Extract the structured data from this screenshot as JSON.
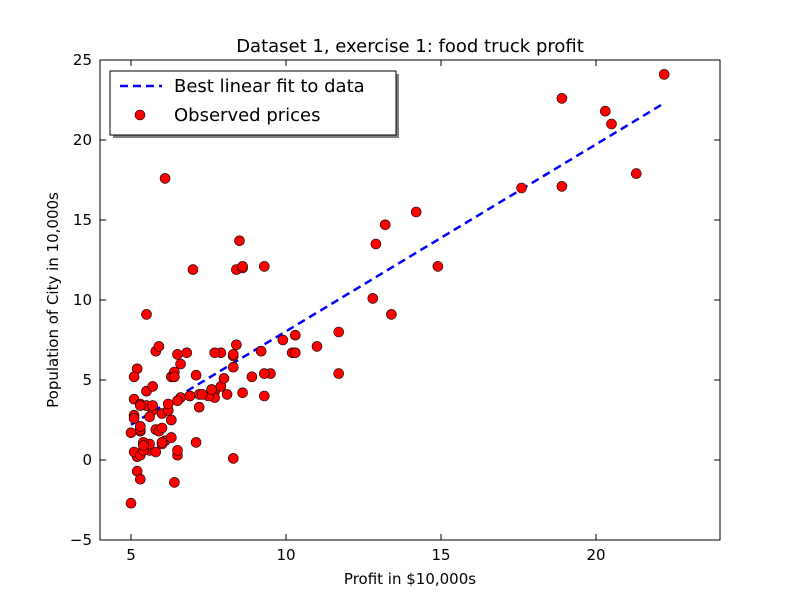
{
  "chart_data": {
    "type": "scatter",
    "title": "Dataset 1, exercise 1: food truck profit",
    "xlabel": "Profit in $10,000s",
    "ylabel": "Population of City in 10,000s",
    "xlim": [
      4,
      24
    ],
    "ylim": [
      -5,
      25
    ],
    "xticks": [
      5,
      10,
      15,
      20
    ],
    "yticks": [
      -5,
      0,
      5,
      10,
      15,
      20,
      25
    ],
    "grid": false,
    "legend": "top-left",
    "series": [
      {
        "name": "Best linear fit to data",
        "kind": "line",
        "style": "dashed",
        "color": "#0000ff",
        "x": [
          5.0,
          22.2
        ],
        "y": [
          2.2,
          22.3
        ]
      },
      {
        "name": "Observed prices",
        "kind": "scatter",
        "color": "#ff0000",
        "edgecolor": "#000000",
        "points": [
          [
            6.1,
            17.6
          ],
          [
            5.5,
            9.1
          ],
          [
            8.5,
            13.7
          ],
          [
            7.0,
            11.9
          ],
          [
            5.8,
            6.8
          ],
          [
            8.4,
            11.9
          ],
          [
            5.7,
            3.3
          ],
          [
            8.6,
            12.0
          ],
          [
            6.5,
            6.6
          ],
          [
            5.1,
            3.8
          ],
          [
            5.7,
            3.3
          ],
          [
            14.2,
            15.5
          ],
          [
            5.7,
            3.1
          ],
          [
            5.2,
            0.2
          ],
          [
            5.8,
            1.9
          ],
          [
            7.2,
            3.3
          ],
          [
            5.3,
            3.5
          ],
          [
            6.6,
            3.9
          ],
          [
            5.1,
            0.5
          ],
          [
            5.2,
            5.7
          ],
          [
            5.5,
            4.3
          ],
          [
            5.0,
            -2.7
          ],
          [
            5.3,
            1.8
          ],
          [
            5.6,
            0.6
          ],
          [
            6.1,
            1.2
          ],
          [
            5.9,
            7.1
          ],
          [
            5.6,
            1.0
          ],
          [
            6.5,
            3.7
          ],
          [
            6.3,
            1.4
          ],
          [
            8.4,
            7.2
          ],
          [
            5.9,
            1.8
          ],
          [
            5.3,
            1.9
          ],
          [
            6.3,
            5.2
          ],
          [
            8.3,
            0.1
          ],
          [
            8.6,
            4.2
          ],
          [
            7.2,
            4.1
          ],
          [
            6.5,
            0.3
          ],
          [
            8.3,
            6.5
          ],
          [
            6.9,
            4.0
          ],
          [
            20.3,
            21.8
          ],
          [
            6.5,
            0.6
          ],
          [
            10.2,
            6.7
          ],
          [
            6.6,
            6.0
          ],
          [
            5.3,
            0.3
          ],
          [
            21.3,
            17.9
          ],
          [
            9.5,
            5.4
          ],
          [
            5.4,
            1.0
          ],
          [
            9.3,
            4.0
          ],
          [
            7.7,
            4.3
          ],
          [
            5.5,
            3.4
          ],
          [
            11.7,
            5.4
          ],
          [
            5.3,
            2.1
          ],
          [
            5.4,
            0.6
          ],
          [
            22.2,
            24.1
          ],
          [
            8.3,
            5.8
          ],
          [
            7.9,
            6.7
          ],
          [
            13.4,
            9.1
          ],
          [
            8.3,
            6.6
          ],
          [
            5.1,
            2.8
          ],
          [
            6.3,
            2.5
          ],
          [
            7.9,
            4.6
          ],
          [
            6.3,
            1.4
          ],
          [
            8.6,
            12.1
          ],
          [
            9.3,
            12.1
          ],
          [
            5.4,
            1.1
          ],
          [
            12.9,
            13.5
          ],
          [
            6.4,
            5.5
          ],
          [
            6.0,
            1.0
          ],
          [
            5.2,
            -0.7
          ],
          [
            7.7,
            6.7
          ],
          [
            13.2,
            14.7
          ],
          [
            5.4,
            0.9
          ],
          [
            6.0,
            1.1
          ],
          [
            5.0,
            1.7
          ],
          [
            5.8,
            0.5
          ],
          [
            6.3,
            2.5
          ],
          [
            6.0,
            2.9
          ],
          [
            7.7,
            3.9
          ],
          [
            5.1,
            5.2
          ],
          [
            5.7,
            4.6
          ],
          [
            12.8,
            10.1
          ],
          [
            5.3,
            -1.2
          ],
          [
            18.9,
            22.6
          ],
          [
            8.1,
            4.1
          ],
          [
            17.6,
            17.0
          ],
          [
            5.7,
            3.4
          ],
          [
            14.9,
            12.1
          ],
          [
            7.6,
            4.4
          ],
          [
            6.9,
            4.0
          ],
          [
            9.2,
            6.8
          ],
          [
            7.1,
            1.1
          ],
          [
            11.7,
            8.0
          ],
          [
            6.2,
            3.1
          ],
          [
            7.5,
            4.0
          ],
          [
            10.3,
            7.8
          ],
          [
            6.2,
            3.1
          ],
          [
            10.3,
            6.7
          ],
          [
            11.0,
            7.1
          ],
          [
            20.5,
            21.0
          ],
          [
            7.1,
            5.3
          ],
          [
            9.9,
            7.5
          ],
          [
            6.4,
            -1.4
          ],
          [
            5.6,
            2.7
          ],
          [
            9.3,
            5.4
          ],
          [
            6.8,
            6.7
          ],
          [
            6.4,
            5.2
          ],
          [
            5.1,
            2.6
          ],
          [
            7.3,
            4.1
          ],
          [
            8.0,
            5.1
          ],
          [
            18.9,
            17.1
          ],
          [
            7.6,
            4.4
          ],
          [
            5.3,
            3.4
          ],
          [
            6.2,
            3.5
          ],
          [
            8.9,
            5.2
          ],
          [
            6.0,
            2.0
          ]
        ]
      }
    ]
  }
}
